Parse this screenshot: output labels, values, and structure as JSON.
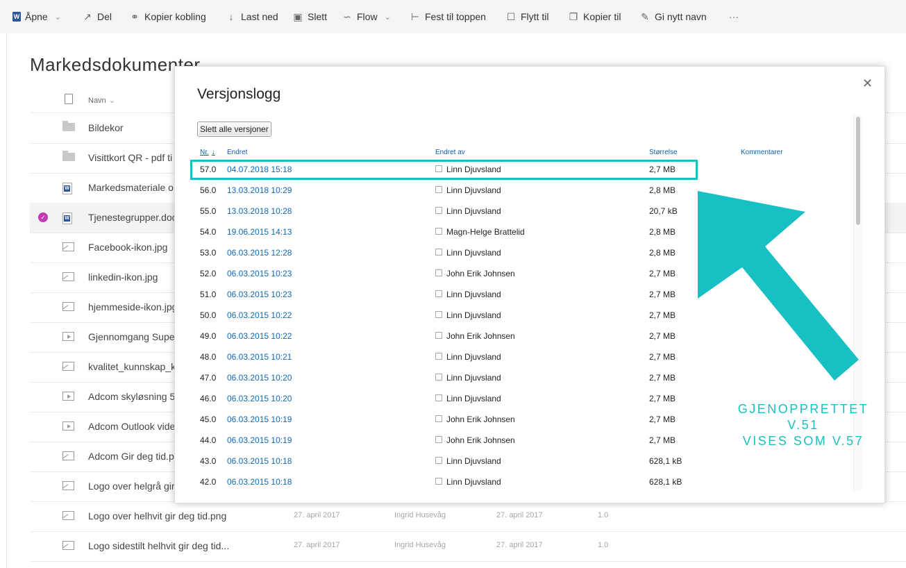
{
  "toolbar": {
    "open": "Åpne",
    "share": "Del",
    "copy_link": "Kopier kobling",
    "download": "Last ned",
    "delete": "Slett",
    "flow": "Flow",
    "pin_top": "Fest til toppen",
    "move_to": "Flytt til",
    "copy_to": "Kopier til",
    "rename": "Gi nytt navn",
    "more": "···"
  },
  "library": {
    "title": "Markedsdokumenter",
    "name_header": "Navn"
  },
  "files": [
    {
      "name": "Bildekor",
      "type": "folder"
    },
    {
      "name": "Visittkort QR - pdf ti",
      "type": "folder"
    },
    {
      "name": "Markedsmateriale o",
      "type": "word"
    },
    {
      "name": "Tjenestegrupper.doc",
      "type": "word"
    },
    {
      "name": "Facebook-ikon.jpg",
      "type": "image"
    },
    {
      "name": "linkedin-ikon.jpg",
      "type": "image"
    },
    {
      "name": "hjemmeside-ikon.jpg",
      "type": "image"
    },
    {
      "name": "Gjennomgang Supe",
      "type": "video"
    },
    {
      "name": "kvalitet_kunnskap_k",
      "type": "image"
    },
    {
      "name": "Adcom skyløsning 5",
      "type": "video"
    },
    {
      "name": "Adcom Outlook vide",
      "type": "video"
    },
    {
      "name": "Adcom Gir deg tid.p",
      "type": "image"
    },
    {
      "name": "Logo over helgrå gir",
      "type": "image"
    },
    {
      "name": "Logo over helhvit gir deg tid.png",
      "type": "image",
      "modified": "27. april 2017",
      "modified_by": "Ingrid Husevåg",
      "created": "27. april 2017",
      "version": "1.0"
    },
    {
      "name": "Logo sidestilt helhvit gir deg tid...",
      "type": "image",
      "modified": "27. april 2017",
      "modified_by": "Ingrid Husevåg",
      "created": "27. april 2017",
      "version": "1.0"
    }
  ],
  "dialog": {
    "title": "Versjonslogg",
    "delete_all": "Slett alle versjoner",
    "columns": {
      "nr": "Nr.",
      "modified": "Endret",
      "modified_by": "Endret av",
      "size": "Størrelse",
      "comments": "Kommentarer"
    },
    "close_icon": "close-icon",
    "versions": [
      {
        "nr": "57.0",
        "date": "04.07.2018 15:18",
        "by": "Linn Djuvsland",
        "size": "2,7 MB"
      },
      {
        "nr": "56.0",
        "date": "13.03.2018 10:29",
        "by": "Linn Djuvsland",
        "size": "2,8 MB"
      },
      {
        "nr": "55.0",
        "date": "13.03.2018 10:28",
        "by": "Linn Djuvsland",
        "size": "20,7 kB"
      },
      {
        "nr": "54.0",
        "date": "19.06.2015 14:13",
        "by": "Magn-Helge Brattelid",
        "size": "2,8 MB"
      },
      {
        "nr": "53.0",
        "date": "06.03.2015 12:28",
        "by": "Linn Djuvsland",
        "size": "2,8 MB"
      },
      {
        "nr": "52.0",
        "date": "06.03.2015 10:23",
        "by": "John Erik Johnsen",
        "size": "2,7 MB"
      },
      {
        "nr": "51.0",
        "date": "06.03.2015 10:23",
        "by": "Linn Djuvsland",
        "size": "2,7 MB"
      },
      {
        "nr": "50.0",
        "date": "06.03.2015 10:22",
        "by": "Linn Djuvsland",
        "size": "2,7 MB"
      },
      {
        "nr": "49.0",
        "date": "06.03.2015 10:22",
        "by": "John Erik Johnsen",
        "size": "2,7 MB"
      },
      {
        "nr": "48.0",
        "date": "06.03.2015 10:21",
        "by": "Linn Djuvsland",
        "size": "2,7 MB"
      },
      {
        "nr": "47.0",
        "date": "06.03.2015 10:20",
        "by": "Linn Djuvsland",
        "size": "2,7 MB"
      },
      {
        "nr": "46.0",
        "date": "06.03.2015 10:20",
        "by": "Linn Djuvsland",
        "size": "2,7 MB"
      },
      {
        "nr": "45.0",
        "date": "06.03.2015 10:19",
        "by": "John Erik Johnsen",
        "size": "2,7 MB"
      },
      {
        "nr": "44.0",
        "date": "06.03.2015 10:19",
        "by": "John Erik Johnsen",
        "size": "2,7 MB"
      },
      {
        "nr": "43.0",
        "date": "06.03.2015 10:18",
        "by": "Linn Djuvsland",
        "size": "628,1 kB"
      },
      {
        "nr": "42.0",
        "date": "06.03.2015 10:18",
        "by": "Linn Djuvsland",
        "size": "628,1 kB"
      }
    ]
  },
  "annotation": {
    "line1": "GJENOPPRETTET V.51",
    "line2": "VISES SOM V.57",
    "color": "#17c0c2"
  }
}
